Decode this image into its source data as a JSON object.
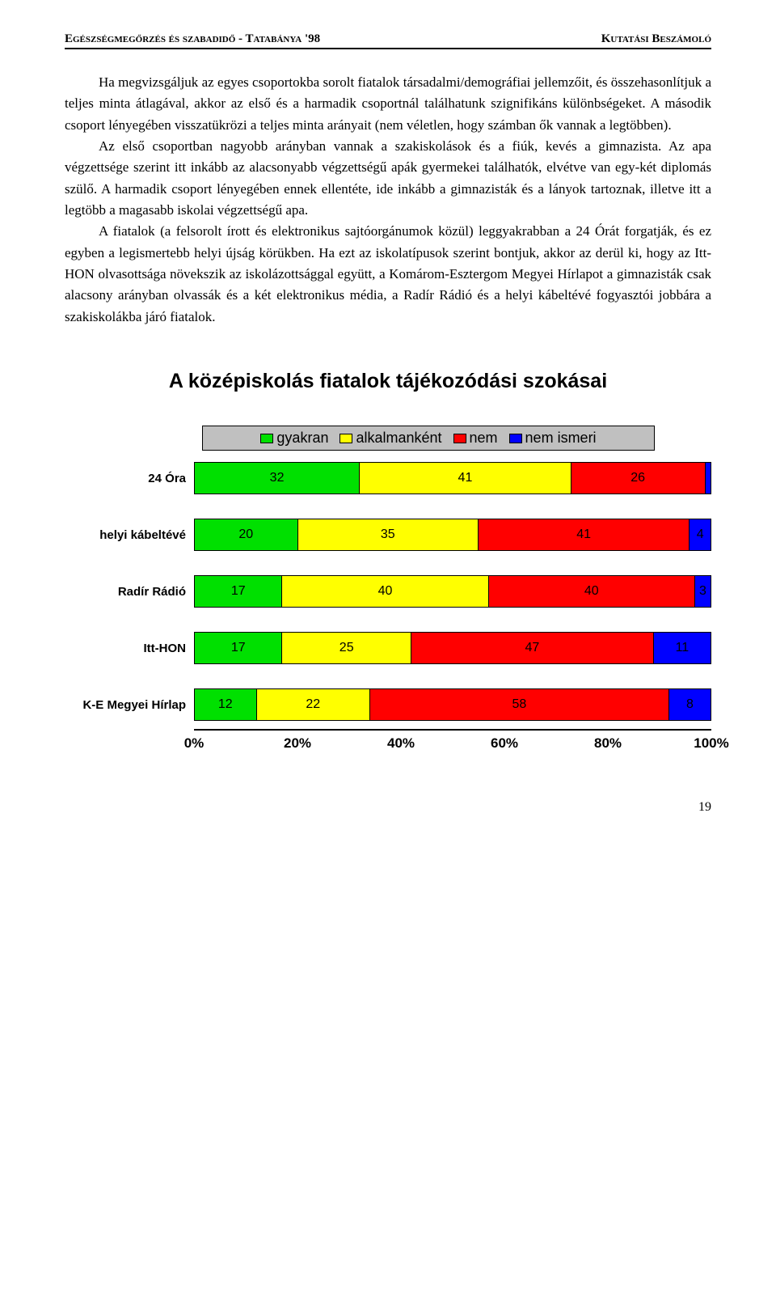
{
  "header": {
    "left": "Egészségmegőrzés és szabadidő - Tatabánya '98",
    "right": "Kutatási Beszámoló"
  },
  "paragraphs": {
    "p1": "Ha megvizsgáljuk az egyes csoportokba sorolt fiatalok társadalmi/demográfiai jellemzőit, és összehasonlítjuk a teljes minta átlagával, akkor az első és a harmadik csoportnál találhatunk szignifikáns különbségeket. A második csoport lényegében visszatükrözi a teljes minta arányait (nem véletlen, hogy számban ők vannak a legtöbben).",
    "p2": "Az első csoportban nagyobb arányban vannak a szakiskolások és a fiúk, kevés a gimnazista. Az apa végzettsége szerint itt inkább az alacsonyabb végzettségű apák gyermekei találhatók, elvétve van egy-két diplomás szülő. A harmadik csoport lényegében ennek ellentéte, ide inkább a gimnazisták és a lányok tartoznak, illetve itt a legtöbb a magasabb iskolai végzettségű apa.",
    "p3": "A fiatalok (a felsorolt írott és elektronikus sajtóorgánumok közül) leggyakrabban a 24 Órát forgatják, és ez egyben a legismertebb helyi újság körükben. Ha ezt az iskolatípusok szerint bontjuk, akkor az derül ki, hogy az Itt-HON olvasottsága növekszik az iskolázottsággal együtt, a Komárom-Esztergom Megyei Hírlapot a gimnazisták csak alacsony arányban olvassák és a két elektronikus média, a Radír Rádió és a helyi kábeltévé fogyasztói jobbára a szakiskolákba járó fiatalok."
  },
  "chart": {
    "title": "A középiskolás fiatalok tájékozódási szokásai",
    "type": "stacked-bar-horizontal",
    "legend": {
      "items": [
        {
          "label": "gyakran",
          "color": "#00e000"
        },
        {
          "label": "alkalmanként",
          "color": "#ffff00"
        },
        {
          "label": "nem",
          "color": "#ff0000"
        },
        {
          "label": "nem ismeri",
          "color": "#0000ff"
        }
      ],
      "background": "#c0c0c0"
    },
    "categories": [
      {
        "label": "24 Óra",
        "values": [
          32,
          41,
          26,
          1
        ]
      },
      {
        "label": "helyi kábeltévé",
        "values": [
          20,
          35,
          41,
          4
        ]
      },
      {
        "label": "Radír Rádió",
        "values": [
          17,
          40,
          40,
          3
        ]
      },
      {
        "label": "Itt-HON",
        "values": [
          17,
          25,
          47,
          11
        ]
      },
      {
        "label": "K-E Megyei Hírlap",
        "values": [
          12,
          22,
          58,
          8
        ]
      }
    ],
    "series_colors": [
      "#00e000",
      "#ffff00",
      "#ff0000",
      "#0000ff"
    ],
    "xaxis": {
      "ticks": [
        "0%",
        "20%",
        "40%",
        "60%",
        "80%",
        "100%"
      ],
      "min": 0,
      "max": 100
    },
    "label_fontsize": 15,
    "value_fontsize": 16,
    "background_color": "#ffffff"
  },
  "page_number": "19"
}
